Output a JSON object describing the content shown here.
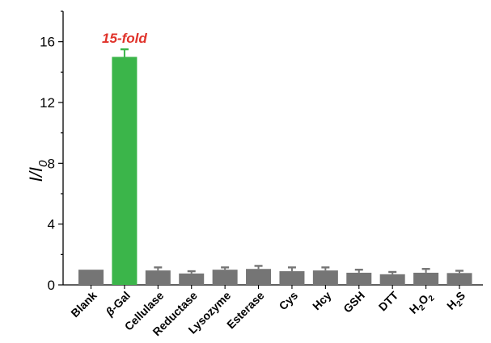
{
  "chart_data": {
    "type": "bar",
    "ylabel_main": "I/I",
    "ylabel_sub": "0",
    "ylim": [
      0,
      18
    ],
    "yticks": [
      0,
      4,
      8,
      12,
      16
    ],
    "categories": [
      "Blank",
      "Gal",
      "Cellulase",
      "Reductase",
      "Lysozyme",
      "Esterase",
      "Cys",
      "Hcy",
      "GSH",
      "DTT",
      "H2O2",
      "H2S"
    ],
    "category_labels": [
      {
        "parts": [
          {
            "t": "Blank"
          }
        ]
      },
      {
        "parts": [
          {
            "t": "β",
            "italic": true
          },
          {
            "t": "-Gal"
          }
        ]
      },
      {
        "parts": [
          {
            "t": "Cellulase"
          }
        ]
      },
      {
        "parts": [
          {
            "t": "Reductase"
          }
        ]
      },
      {
        "parts": [
          {
            "t": "Lysozyme"
          }
        ]
      },
      {
        "parts": [
          {
            "t": "Esterase"
          }
        ]
      },
      {
        "parts": [
          {
            "t": "Cys"
          }
        ]
      },
      {
        "parts": [
          {
            "t": "Hcy"
          }
        ]
      },
      {
        "parts": [
          {
            "t": "GSH"
          }
        ]
      },
      {
        "parts": [
          {
            "t": "DTT"
          }
        ]
      },
      {
        "parts": [
          {
            "t": "H"
          },
          {
            "t": "2",
            "sub": true
          },
          {
            "t": "O"
          },
          {
            "t": "2",
            "sub": true
          }
        ]
      },
      {
        "parts": [
          {
            "t": "H"
          },
          {
            "t": "2",
            "sub": true
          },
          {
            "t": "S"
          }
        ]
      }
    ],
    "values": [
      1.0,
      15.0,
      0.95,
      0.75,
      1.0,
      1.05,
      0.9,
      0.95,
      0.8,
      0.7,
      0.8,
      0.78
    ],
    "errors": [
      0.0,
      0.5,
      0.2,
      0.15,
      0.15,
      0.2,
      0.25,
      0.2,
      0.2,
      0.15,
      0.25,
      0.15
    ],
    "highlight_index": 1,
    "annotation": "15-fold",
    "colors": {
      "bar": "#757575",
      "highlight_bar": "#3bb54a",
      "annotation": "#e0322a"
    }
  }
}
